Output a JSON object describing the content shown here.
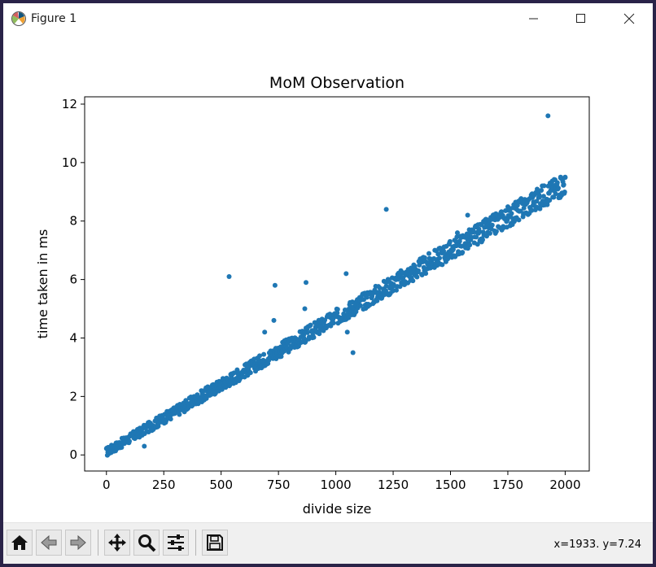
{
  "window": {
    "title": "Figure 1",
    "controls": {
      "minimize": "minimize",
      "maximize": "maximize",
      "close": "close"
    }
  },
  "toolbar": {
    "items": [
      {
        "name": "home",
        "icon": "home-icon"
      },
      {
        "name": "back",
        "icon": "back-arrow-icon"
      },
      {
        "name": "forward",
        "icon": "forward-arrow-icon"
      },
      {
        "name": "pan",
        "icon": "pan-icon"
      },
      {
        "name": "zoom",
        "icon": "zoom-icon"
      },
      {
        "name": "configure-subplots",
        "icon": "sliders-icon"
      },
      {
        "name": "save",
        "icon": "save-icon"
      }
    ],
    "coords": "x=1933. y=7.24"
  },
  "chart_data": {
    "type": "scatter",
    "title": "MoM Observation",
    "xlabel": "divide size",
    "ylabel": "time taken in ms",
    "xlim": [
      -95,
      2105
    ],
    "ylim": [
      -0.55,
      12.25
    ],
    "xticks": [
      0,
      250,
      500,
      750,
      1000,
      1250,
      1500,
      1750,
      2000
    ],
    "yticks": [
      0,
      2,
      4,
      6,
      8,
      10,
      12
    ],
    "grid": false,
    "color": "#1f77b4",
    "trend": {
      "from": [
        0,
        0.1
      ],
      "to": [
        2000,
        9.3
      ]
    },
    "outliers": [
      {
        "x": 535,
        "y": 6.1
      },
      {
        "x": 735,
        "y": 5.8
      },
      {
        "x": 730,
        "y": 4.6
      },
      {
        "x": 870,
        "y": 5.9
      },
      {
        "x": 865,
        "y": 5.0
      },
      {
        "x": 1045,
        "y": 6.2
      },
      {
        "x": 1220,
        "y": 8.4
      },
      {
        "x": 1925,
        "y": 11.6
      },
      {
        "x": 1575,
        "y": 8.2
      },
      {
        "x": 1530,
        "y": 7.6
      },
      {
        "x": 1720,
        "y": 8.3
      },
      {
        "x": 1050,
        "y": 4.2
      },
      {
        "x": 1075,
        "y": 3.5
      },
      {
        "x": 690,
        "y": 4.2
      },
      {
        "x": 165,
        "y": 0.3
      },
      {
        "x": 1980,
        "y": 9.5
      },
      {
        "x": 2000,
        "y": 9.5
      }
    ]
  }
}
